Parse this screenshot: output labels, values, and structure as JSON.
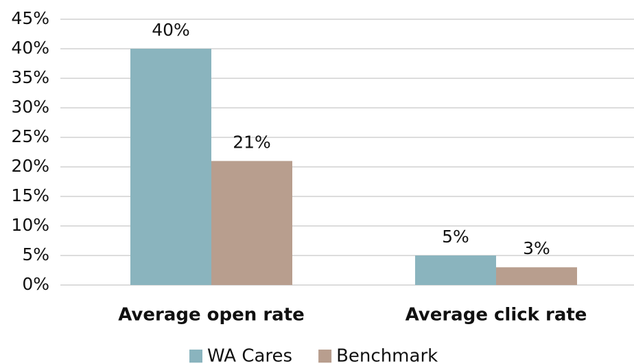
{
  "chart_data": {
    "type": "bar",
    "categories": [
      "Average open rate",
      "Average click rate"
    ],
    "series": [
      {
        "name": "WA Cares",
        "color": "#8ab4be",
        "values": [
          40,
          5
        ],
        "value_labels": [
          "40%",
          "5%"
        ]
      },
      {
        "name": "Benchmark",
        "color": "#b89e8e",
        "values": [
          21,
          3
        ],
        "value_labels": [
          "21%",
          "3%"
        ]
      }
    ],
    "ylim": [
      0,
      45
    ],
    "yticks": [
      {
        "value": 0,
        "label": "0%"
      },
      {
        "value": 5,
        "label": "5%"
      },
      {
        "value": 10,
        "label": "10%"
      },
      {
        "value": 15,
        "label": "15%"
      },
      {
        "value": 20,
        "label": "20%"
      },
      {
        "value": 25,
        "label": "25%"
      },
      {
        "value": 30,
        "label": "30%"
      },
      {
        "value": 35,
        "label": "35%"
      },
      {
        "value": 40,
        "label": "40%"
      },
      {
        "value": 45,
        "label": "45%"
      }
    ],
    "grid": true,
    "legend": "bottom"
  }
}
